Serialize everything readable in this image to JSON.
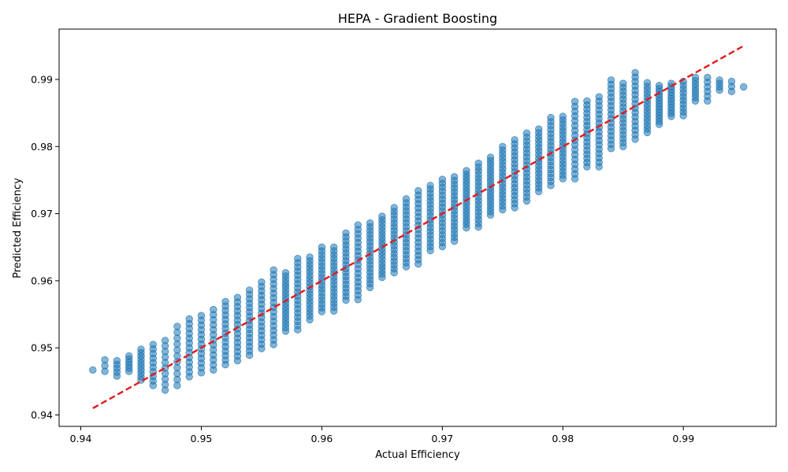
{
  "chart_data": {
    "type": "scatter",
    "title": "HEPA - Gradient Boosting",
    "xlabel": "Actual Efficiency",
    "ylabel": "Predicted Efficiency",
    "xlim": [
      0.9382,
      0.9977
    ],
    "ylim": [
      0.9383,
      0.9975
    ],
    "xticks": [
      "0.94",
      "0.95",
      "0.96",
      "0.97",
      "0.98",
      "0.99"
    ],
    "yticks": [
      "0.94",
      "0.95",
      "0.96",
      "0.97",
      "0.98",
      "0.99"
    ],
    "grid": false,
    "point_color": "#1f77b4",
    "point_alpha": 0.55,
    "reference_line": {
      "style": "dashed",
      "color": "#e31a1c",
      "x": [
        0.941,
        0.995
      ],
      "y": [
        0.941,
        0.995
      ]
    },
    "x_values": [
      0.941,
      0.942,
      0.943,
      0.944,
      0.945,
      0.946,
      0.947,
      0.948,
      0.949,
      0.95,
      0.951,
      0.952,
      0.953,
      0.954,
      0.955,
      0.956,
      0.957,
      0.958,
      0.959,
      0.96,
      0.961,
      0.962,
      0.963,
      0.964,
      0.965,
      0.966,
      0.967,
      0.968,
      0.969,
      0.97,
      0.971,
      0.972,
      0.973,
      0.974,
      0.975,
      0.976,
      0.977,
      0.978,
      0.979,
      0.98,
      0.981,
      0.982,
      0.983,
      0.984,
      0.985,
      0.986,
      0.987,
      0.988,
      0.989,
      0.99,
      0.991,
      0.992,
      0.993,
      0.994,
      0.995
    ],
    "y_ranges": [
      [
        0.9467,
        0.9467
      ],
      [
        0.9465,
        0.9482
      ],
      [
        0.9458,
        0.9481
      ],
      [
        0.9465,
        0.9488
      ],
      [
        0.9452,
        0.9498
      ],
      [
        0.9444,
        0.9505
      ],
      [
        0.9437,
        0.9511
      ],
      [
        0.9444,
        0.9532
      ],
      [
        0.9457,
        0.9543
      ],
      [
        0.9463,
        0.9548
      ],
      [
        0.9467,
        0.9557
      ],
      [
        0.9475,
        0.9569
      ],
      [
        0.9481,
        0.9575
      ],
      [
        0.9489,
        0.9586
      ],
      [
        0.9499,
        0.9598
      ],
      [
        0.9505,
        0.9616
      ],
      [
        0.9525,
        0.9612
      ],
      [
        0.9527,
        0.9633
      ],
      [
        0.9542,
        0.9635
      ],
      [
        0.9554,
        0.965
      ],
      [
        0.9555,
        0.965
      ],
      [
        0.9571,
        0.9671
      ],
      [
        0.9572,
        0.9683
      ],
      [
        0.959,
        0.9686
      ],
      [
        0.9605,
        0.9696
      ],
      [
        0.9612,
        0.9709
      ],
      [
        0.9621,
        0.9722
      ],
      [
        0.9625,
        0.9734
      ],
      [
        0.9645,
        0.9742
      ],
      [
        0.9651,
        0.9751
      ],
      [
        0.9659,
        0.9755
      ],
      [
        0.9679,
        0.9764
      ],
      [
        0.968,
        0.9775
      ],
      [
        0.9698,
        0.9784
      ],
      [
        0.9706,
        0.98
      ],
      [
        0.9709,
        0.981
      ],
      [
        0.9719,
        0.982
      ],
      [
        0.9733,
        0.9826
      ],
      [
        0.9742,
        0.9843
      ],
      [
        0.9752,
        0.9845
      ],
      [
        0.9752,
        0.9867
      ],
      [
        0.977,
        0.9868
      ],
      [
        0.977,
        0.9874
      ],
      [
        0.9797,
        0.9899
      ],
      [
        0.98,
        0.9894
      ],
      [
        0.9811,
        0.991
      ],
      [
        0.9821,
        0.9895
      ],
      [
        0.9833,
        0.9891
      ],
      [
        0.9845,
        0.9894
      ],
      [
        0.9846,
        0.9897
      ],
      [
        0.9868,
        0.9903
      ],
      [
        0.9868,
        0.9903
      ],
      [
        0.9884,
        0.9899
      ],
      [
        0.9882,
        0.9897
      ],
      [
        0.9889,
        0.9889
      ]
    ],
    "points_per_x": [
      1,
      3,
      5,
      6,
      10,
      10,
      10,
      11,
      13,
      13,
      13,
      15,
      15,
      16,
      16,
      17,
      18,
      18,
      18,
      18,
      18,
      18,
      18,
      18,
      18,
      18,
      18,
      18,
      18,
      18,
      18,
      18,
      18,
      18,
      18,
      18,
      18,
      18,
      18,
      18,
      17,
      17,
      17,
      17,
      17,
      16,
      15,
      14,
      12,
      10,
      8,
      6,
      4,
      3,
      1
    ]
  }
}
